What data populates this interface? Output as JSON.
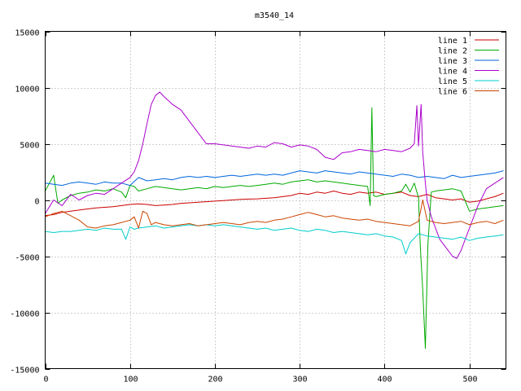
{
  "chart_data": {
    "type": "line",
    "title": "m3540_14",
    "xlabel": "",
    "ylabel": "",
    "xlim": [
      0,
      543
    ],
    "ylim": [
      -15000,
      15000
    ],
    "x_ticks": [
      0,
      100,
      200,
      300,
      400,
      500
    ],
    "y_ticks": [
      -15000,
      -10000,
      -5000,
      0,
      5000,
      10000,
      15000
    ],
    "x_tick_labels": [
      "0",
      "100",
      "200",
      "300",
      "400",
      "500"
    ],
    "y_tick_labels": [
      "-15000",
      "-10000",
      "-5000",
      "0",
      "5000",
      "10000",
      "15000"
    ],
    "grid": true,
    "legend_position": "top-right",
    "series": [
      {
        "name": "line 1",
        "color": "#cc0000",
        "x": [
          0,
          10,
          20,
          30,
          40,
          50,
          60,
          70,
          80,
          90,
          100,
          110,
          120,
          130,
          140,
          150,
          160,
          170,
          180,
          190,
          200,
          210,
          220,
          230,
          240,
          250,
          260,
          270,
          280,
          290,
          300,
          310,
          320,
          330,
          340,
          350,
          360,
          370,
          380,
          390,
          400,
          410,
          420,
          430,
          440,
          450,
          460,
          470,
          480,
          490,
          500,
          510,
          520,
          530,
          540
        ],
        "y": [
          -1400,
          -1300,
          -1100,
          -1000,
          -900,
          -800,
          -700,
          -650,
          -600,
          -500,
          -400,
          -350,
          -400,
          -500,
          -450,
          -400,
          -300,
          -250,
          -200,
          -150,
          -100,
          -50,
          0,
          50,
          80,
          100,
          150,
          200,
          300,
          400,
          600,
          500,
          700,
          600,
          800,
          600,
          500,
          700,
          600,
          700,
          500,
          600,
          700,
          400,
          300,
          500,
          200,
          100,
          0,
          100,
          -200,
          -100,
          100,
          300,
          600
        ]
      },
      {
        "name": "line 2",
        "color": "#00aa00",
        "x": [
          0,
          5,
          10,
          15,
          20,
          30,
          40,
          50,
          60,
          70,
          80,
          90,
          95,
          100,
          105,
          110,
          120,
          130,
          140,
          150,
          160,
          170,
          180,
          190,
          200,
          210,
          220,
          230,
          240,
          250,
          260,
          270,
          280,
          290,
          300,
          310,
          320,
          330,
          340,
          350,
          360,
          370,
          380,
          383,
          385,
          387,
          390,
          400,
          410,
          420,
          425,
          430,
          435,
          440,
          442,
          445,
          448,
          451,
          455,
          460,
          470,
          480,
          490,
          500,
          510,
          520,
          530,
          540
        ],
        "y": [
          800,
          1500,
          2200,
          -300,
          0,
          400,
          600,
          700,
          900,
          800,
          1000,
          700,
          200,
          1300,
          1200,
          800,
          1000,
          1200,
          1100,
          1000,
          900,
          1000,
          1100,
          1000,
          1200,
          1100,
          1200,
          1300,
          1200,
          1300,
          1400,
          1500,
          1400,
          1600,
          1700,
          1800,
          1600,
          1700,
          1600,
          1500,
          1400,
          1300,
          1200,
          -500,
          8200,
          400,
          300,
          500,
          600,
          800,
          1400,
          700,
          1500,
          200,
          -4000,
          -8000,
          -13200,
          -4000,
          700,
          800,
          900,
          1000,
          800,
          -1000,
          -800,
          -700,
          -600,
          -500
        ]
      },
      {
        "name": "line 3",
        "color": "#0066dd",
        "x": [
          0,
          10,
          20,
          30,
          40,
          50,
          60,
          70,
          80,
          90,
          100,
          110,
          120,
          130,
          140,
          150,
          160,
          170,
          180,
          190,
          200,
          210,
          220,
          230,
          240,
          250,
          260,
          270,
          280,
          290,
          300,
          310,
          320,
          330,
          340,
          350,
          360,
          370,
          380,
          390,
          400,
          410,
          420,
          430,
          440,
          450,
          460,
          470,
          480,
          490,
          500,
          510,
          520,
          530,
          540
        ],
        "y": [
          1500,
          1400,
          1300,
          1500,
          1600,
          1500,
          1400,
          1600,
          1500,
          1500,
          1300,
          2000,
          1700,
          1800,
          1900,
          1800,
          2000,
          2100,
          2000,
          2100,
          2000,
          2100,
          2200,
          2100,
          2200,
          2300,
          2200,
          2300,
          2200,
          2400,
          2600,
          2500,
          2400,
          2600,
          2500,
          2400,
          2300,
          2500,
          2400,
          2300,
          2200,
          2100,
          2300,
          2200,
          2000,
          2100,
          2000,
          1900,
          2200,
          2000,
          2100,
          2200,
          2300,
          2400,
          2600
        ]
      },
      {
        "name": "line 4",
        "color": "#aa00cc",
        "x": [
          0,
          10,
          20,
          30,
          40,
          50,
          60,
          70,
          80,
          90,
          100,
          105,
          110,
          115,
          120,
          125,
          130,
          135,
          140,
          150,
          160,
          170,
          180,
          190,
          200,
          210,
          220,
          230,
          240,
          250,
          260,
          270,
          280,
          290,
          300,
          310,
          320,
          330,
          340,
          350,
          360,
          370,
          380,
          390,
          400,
          410,
          420,
          430,
          435,
          438,
          440,
          443,
          445,
          448,
          450,
          455,
          460,
          465,
          470,
          475,
          480,
          485,
          490,
          500,
          510,
          520,
          530,
          540
        ],
        "y": [
          -1200,
          0,
          -500,
          500,
          0,
          400,
          600,
          500,
          1000,
          1500,
          2000,
          2500,
          3500,
          5000,
          6800,
          8500,
          9300,
          9600,
          9200,
          8500,
          8000,
          7000,
          6000,
          5000,
          5000,
          4900,
          4800,
          4700,
          4600,
          4800,
          4700,
          5100,
          5000,
          4700,
          4900,
          4800,
          4500,
          3800,
          3600,
          4200,
          4300,
          4500,
          4400,
          4300,
          4500,
          4400,
          4300,
          4600,
          5000,
          8400,
          4800,
          8500,
          4200,
          1500,
          0,
          -1500,
          -2500,
          -3500,
          -4000,
          -4500,
          -5000,
          -5200,
          -4500,
          -2500,
          -500,
          1000,
          1500,
          2000
        ]
      },
      {
        "name": "line 5",
        "color": "#00cccc",
        "x": [
          0,
          10,
          20,
          30,
          40,
          50,
          60,
          70,
          80,
          90,
          95,
          100,
          105,
          110,
          120,
          130,
          140,
          150,
          160,
          170,
          180,
          190,
          200,
          210,
          220,
          230,
          240,
          250,
          260,
          270,
          280,
          290,
          300,
          310,
          320,
          330,
          340,
          350,
          360,
          370,
          380,
          390,
          400,
          410,
          420,
          425,
          430,
          440,
          450,
          460,
          470,
          480,
          490,
          500,
          510,
          520,
          530,
          540
        ],
        "y": [
          -2800,
          -2900,
          -2800,
          -2800,
          -2700,
          -2600,
          -2700,
          -2500,
          -2600,
          -2600,
          -3500,
          -2400,
          -2600,
          -2500,
          -2400,
          -2300,
          -2500,
          -2400,
          -2300,
          -2200,
          -2300,
          -2200,
          -2300,
          -2200,
          -2300,
          -2400,
          -2500,
          -2600,
          -2500,
          -2700,
          -2600,
          -2500,
          -2700,
          -2800,
          -2600,
          -2700,
          -2900,
          -2800,
          -2900,
          -3000,
          -3100,
          -3000,
          -3200,
          -3300,
          -3600,
          -4800,
          -3800,
          -3000,
          -3200,
          -3300,
          -3400,
          -3500,
          -3300,
          -3600,
          -3400,
          -3300,
          -3200,
          -3100
        ]
      },
      {
        "name": "line 6",
        "color": "#cc4400",
        "x": [
          0,
          10,
          20,
          30,
          40,
          50,
          60,
          70,
          80,
          90,
          100,
          105,
          110,
          115,
          120,
          125,
          130,
          140,
          150,
          160,
          170,
          180,
          190,
          200,
          210,
          220,
          230,
          240,
          250,
          260,
          270,
          280,
          290,
          300,
          310,
          320,
          330,
          340,
          350,
          360,
          370,
          380,
          390,
          400,
          410,
          420,
          430,
          440,
          445,
          450,
          460,
          470,
          480,
          490,
          500,
          510,
          520,
          530,
          540
        ],
        "y": [
          -1500,
          -1200,
          -1000,
          -1400,
          -1800,
          -2400,
          -2500,
          -2300,
          -2200,
          -2000,
          -1800,
          -1500,
          -2500,
          -1000,
          -1200,
          -2200,
          -2000,
          -2200,
          -2300,
          -2200,
          -2100,
          -2300,
          -2200,
          -2100,
          -2000,
          -2100,
          -2200,
          -2000,
          -1900,
          -2000,
          -1800,
          -1700,
          -1500,
          -1300,
          -1100,
          -1300,
          -1500,
          -1400,
          -1600,
          -1700,
          -1800,
          -1700,
          -1900,
          -2000,
          -2100,
          -2200,
          -2300,
          -1900,
          0,
          -1800,
          -2000,
          -2100,
          -2000,
          -1900,
          -2200,
          -2000,
          -1900,
          -2100,
          -1800
        ]
      }
    ]
  }
}
